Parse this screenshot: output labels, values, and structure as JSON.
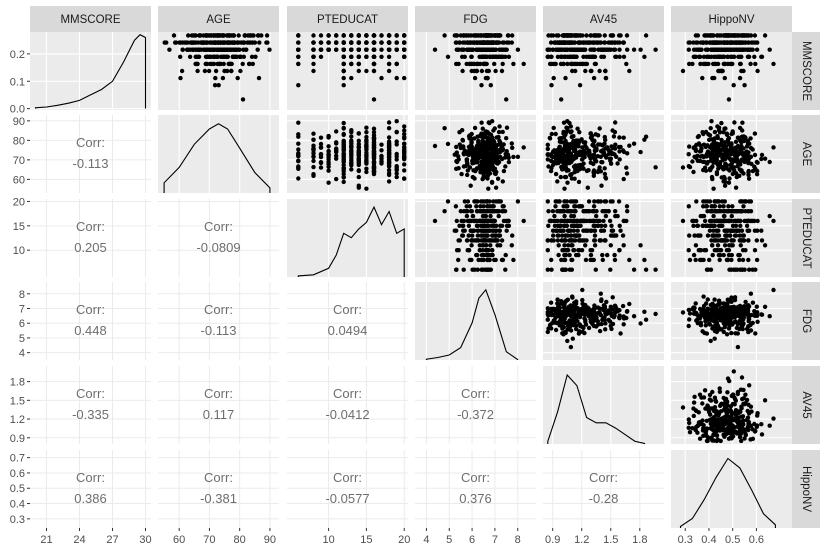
{
  "chart_data": {
    "type": "scatterplot-matrix",
    "variables": [
      "MMSCORE",
      "AGE",
      "PTEDUCAT",
      "FDG",
      "AV45",
      "HippoNV"
    ],
    "corr_label": "Corr:",
    "correlations": [
      {
        "row": "AGE",
        "col": "MMSCORE",
        "value": "-0.113"
      },
      {
        "row": "PTEDUCAT",
        "col": "MMSCORE",
        "value": "0.205"
      },
      {
        "row": "PTEDUCAT",
        "col": "AGE",
        "value": "-0.0809"
      },
      {
        "row": "FDG",
        "col": "MMSCORE",
        "value": "0.448"
      },
      {
        "row": "FDG",
        "col": "AGE",
        "value": "-0.113"
      },
      {
        "row": "FDG",
        "col": "PTEDUCAT",
        "value": "0.0494"
      },
      {
        "row": "AV45",
        "col": "MMSCORE",
        "value": "-0.335"
      },
      {
        "row": "AV45",
        "col": "AGE",
        "value": "0.117"
      },
      {
        "row": "AV45",
        "col": "PTEDUCAT",
        "value": "-0.0412"
      },
      {
        "row": "AV45",
        "col": "FDG",
        "value": "-0.372"
      },
      {
        "row": "HippoNV",
        "col": "MMSCORE",
        "value": "0.386"
      },
      {
        "row": "HippoNV",
        "col": "AGE",
        "value": "-0.381"
      },
      {
        "row": "HippoNV",
        "col": "PTEDUCAT",
        "value": "-0.0577"
      },
      {
        "row": "HippoNV",
        "col": "FDG",
        "value": "0.376"
      },
      {
        "row": "HippoNV",
        "col": "AV45",
        "value": "-0.28"
      }
    ],
    "x_ticks": {
      "MMSCORE": [
        "21",
        "24",
        "27",
        "30"
      ],
      "AGE": [
        "60",
        "70",
        "80",
        "90"
      ],
      "PTEDUCAT": [
        "10",
        "15",
        "20"
      ],
      "FDG": [
        "4",
        "5",
        "6",
        "7",
        "8"
      ],
      "AV45": [
        "0.9",
        "1.2",
        "1.5",
        "1.8"
      ],
      "HippoNV": [
        "0.3",
        "0.4",
        "0.5",
        "0.6"
      ]
    },
    "y_ticks": {
      "MMSCORE": [
        "0.0",
        "0.1",
        "0.2"
      ],
      "AGE": [
        "60",
        "70",
        "80",
        "90"
      ],
      "PTEDUCAT": [
        "10",
        "15",
        "20"
      ],
      "FDG": [
        "4",
        "5",
        "6",
        "7",
        "8"
      ],
      "AV45": [
        "0.9",
        "1.2",
        "1.5",
        "1.8"
      ],
      "HippoNV": [
        "0.3",
        "0.4",
        "0.5",
        "0.6",
        "0.7"
      ]
    },
    "density_curves": {
      "MMSCORE": {
        "x": [
          20,
          21,
          22,
          23,
          24,
          25,
          26,
          27,
          28,
          29,
          29.5,
          30
        ],
        "y": [
          0.003,
          0.006,
          0.012,
          0.02,
          0.03,
          0.05,
          0.07,
          0.1,
          0.17,
          0.25,
          0.27,
          0.26
        ]
      },
      "AGE": {
        "x": [
          55,
          60,
          65,
          70,
          73,
          76,
          80,
          85,
          90
        ],
        "y": [
          0.008,
          0.02,
          0.038,
          0.05,
          0.054,
          0.05,
          0.035,
          0.016,
          0.004
        ]
      },
      "PTEDUCAT": {
        "x": [
          6,
          8,
          10,
          11,
          12,
          13,
          14,
          15,
          16,
          17,
          18,
          19,
          20
        ],
        "y": [
          0.005,
          0.01,
          0.04,
          0.1,
          0.2,
          0.18,
          0.22,
          0.25,
          0.32,
          0.24,
          0.3,
          0.2,
          0.22
        ]
      },
      "FDG": {
        "x": [
          4,
          4.5,
          5,
          5.5,
          6,
          6.3,
          6.6,
          7,
          7.5,
          8
        ],
        "y": [
          0.01,
          0.03,
          0.06,
          0.15,
          0.45,
          0.75,
          0.85,
          0.55,
          0.1,
          0.005
        ]
      },
      "AV45": {
        "x": [
          0.85,
          0.95,
          1.05,
          1.15,
          1.25,
          1.35,
          1.45,
          1.55,
          1.65,
          1.75,
          1.85
        ],
        "y": [
          0.1,
          1.2,
          2.6,
          2.2,
          1.0,
          0.8,
          0.8,
          0.6,
          0.35,
          0.1,
          0.02
        ]
      },
      "HippoNV": {
        "x": [
          0.28,
          0.33,
          0.38,
          0.43,
          0.48,
          0.53,
          0.58,
          0.63,
          0.68
        ],
        "y": [
          0.1,
          0.6,
          1.8,
          3.2,
          4.4,
          3.8,
          2.4,
          0.9,
          0.2
        ]
      }
    }
  }
}
